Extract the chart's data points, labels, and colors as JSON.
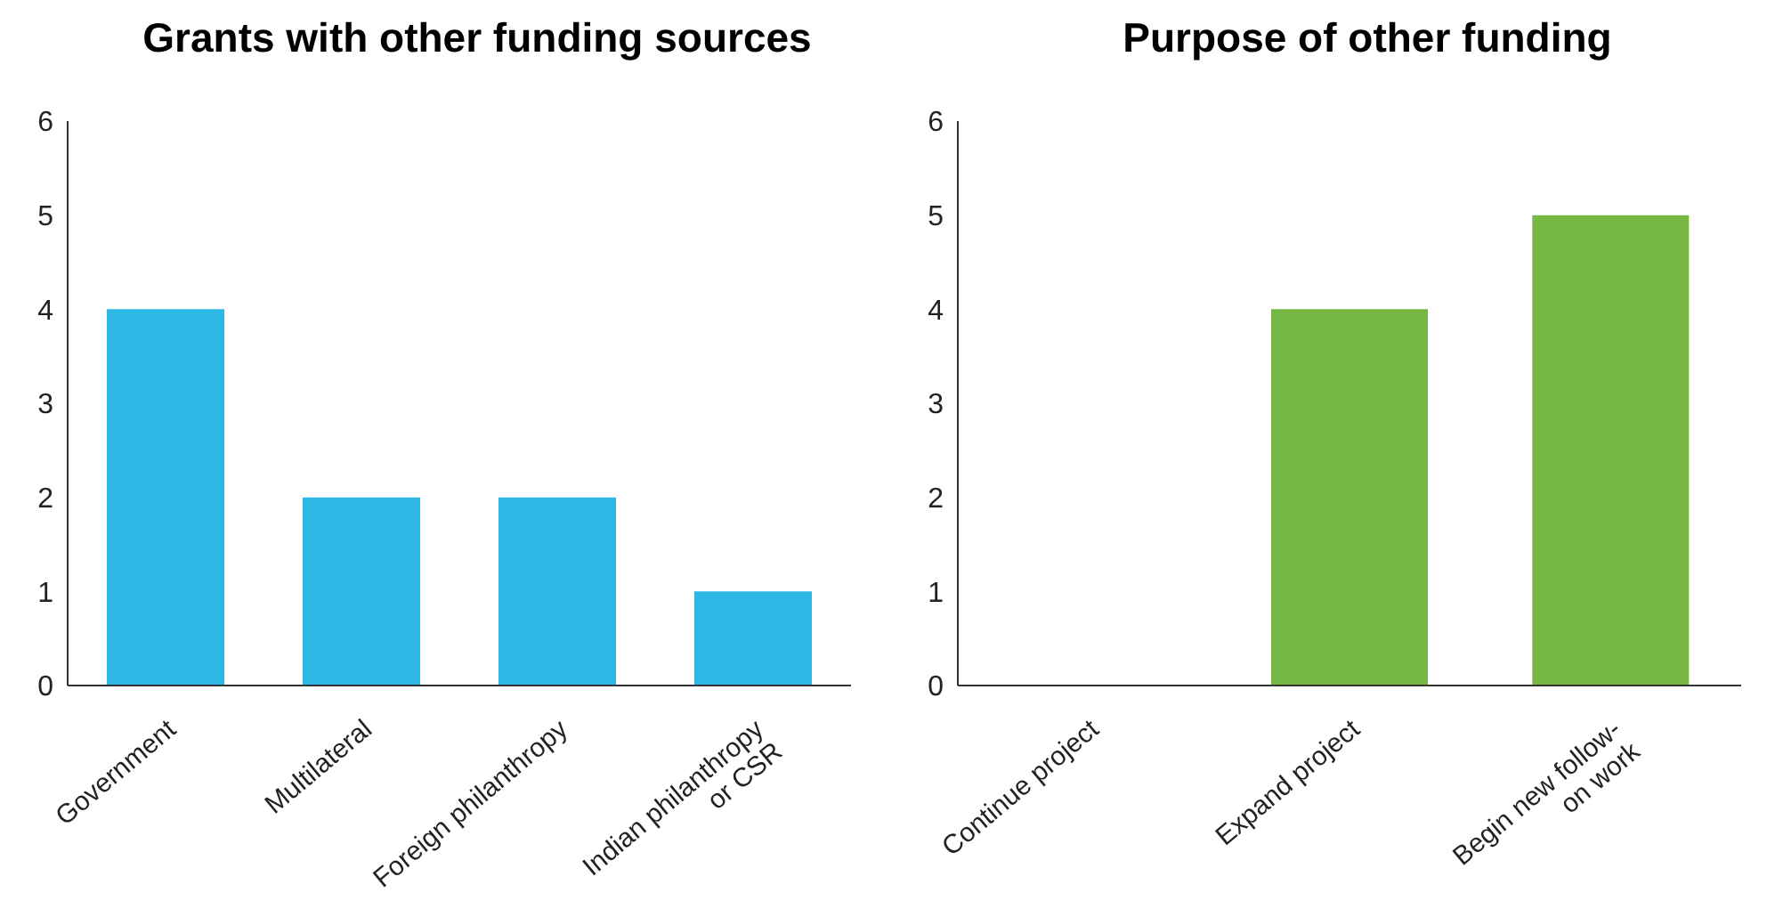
{
  "chart_data": [
    {
      "type": "bar",
      "title": "Grants with other funding sources",
      "categories": [
        "Government",
        "Multilateral",
        "Foreign philanthropy",
        "Indian philanthropy or CSR"
      ],
      "series": [
        {
          "color": "#2eb8e6",
          "values": [
            4,
            2,
            2,
            1
          ]
        }
      ],
      "ylim": [
        0,
        6
      ],
      "yticks": [
        0,
        1,
        2,
        3,
        4,
        5,
        6
      ],
      "grid": false,
      "legend": false
    },
    {
      "type": "bar",
      "title": "Purpose of other funding",
      "categories": [
        "Continue project",
        "Expand project",
        "Begin new follow-on work"
      ],
      "series": [
        {
          "color": "#76b843",
          "values": [
            0,
            4,
            5
          ]
        }
      ],
      "ylim": [
        0,
        6
      ],
      "yticks": [
        0,
        1,
        2,
        3,
        4,
        5,
        6
      ],
      "grid": false,
      "legend": false
    }
  ]
}
